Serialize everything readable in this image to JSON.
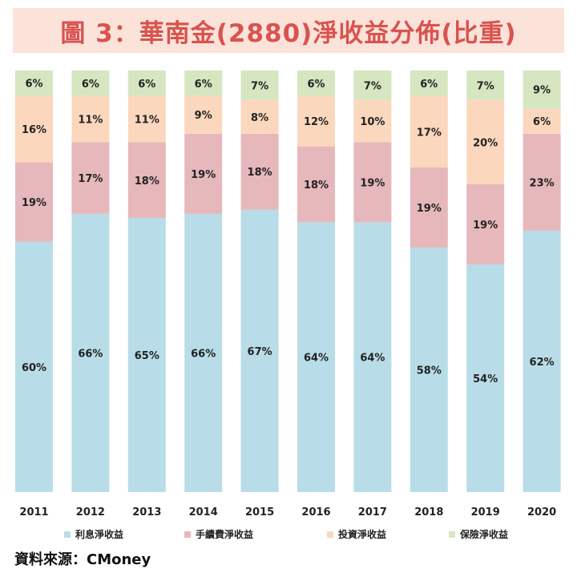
{
  "title": "圖 3：華南金(2880)淨收益分佈(比重)",
  "source": "資料來源：CMoney",
  "chart_data": {
    "type": "bar",
    "stacked": true,
    "categories": [
      "2011",
      "2012",
      "2013",
      "2014",
      "2015",
      "2016",
      "2017",
      "2018",
      "2019",
      "2020"
    ],
    "series": [
      {
        "name": "利息淨收益",
        "color": "#b8dde8",
        "values": [
          60,
          66,
          65,
          66,
          67,
          64,
          64,
          58,
          54,
          62
        ]
      },
      {
        "name": "手續費淨收益",
        "color": "#e6b8bb",
        "values": [
          19,
          17,
          18,
          19,
          18,
          18,
          19,
          19,
          19,
          23
        ]
      },
      {
        "name": "投資淨收益",
        "color": "#fbd7bd",
        "values": [
          16,
          11,
          11,
          9,
          8,
          12,
          10,
          17,
          20,
          6
        ]
      },
      {
        "name": "保險淨收益",
        "color": "#d6e6c1",
        "values": [
          6,
          6,
          6,
          6,
          7,
          6,
          7,
          6,
          7,
          9
        ]
      }
    ],
    "value_format": "{v}%",
    "legend_position": "bottom",
    "grid": false
  }
}
